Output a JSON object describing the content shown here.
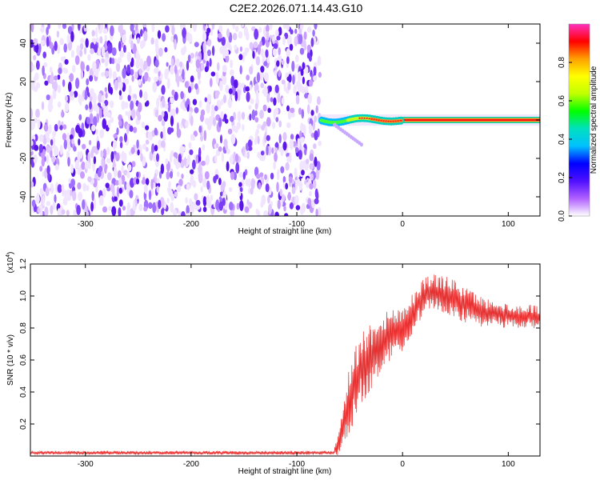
{
  "title": "C2E2.2026.071.14.43.G10",
  "chart_data": [
    {
      "type": "heatmap",
      "xlabel": "Height of straight line (km)",
      "ylabel": "Frequency (Hz)",
      "xlim": [
        -352,
        130
      ],
      "ylim": [
        -50,
        50
      ],
      "xticks": [
        -300,
        -200,
        -100,
        0,
        100
      ],
      "yticks": [
        -40,
        -20,
        0,
        20,
        40
      ],
      "noise_region_x": [
        -352,
        -78
      ],
      "signal_band_x": [
        -78,
        130
      ],
      "signal_frequency": 0,
      "colorbar": {
        "label": "Normalized spectral amplitude",
        "range": [
          0,
          1
        ],
        "ticks": [
          0.0,
          0.2,
          0.4,
          0.6,
          0.8
        ],
        "colors": [
          "#ffffff",
          "#b060ff",
          "#5010ff",
          "#0000ff",
          "#00c0ff",
          "#00e0c0",
          "#00ff00",
          "#c0ff00",
          "#ffff00",
          "#ffa000",
          "#ff0000",
          "#ff30c0"
        ]
      }
    },
    {
      "type": "line",
      "xlabel": "Height of straight line (km)",
      "ylabel": "SNR (10 * v/v)",
      "yscale_label": "(x10",
      "yscale_exp": "4",
      "yscale_close": ")",
      "xlim": [
        -352,
        130
      ],
      "ylim": [
        0,
        1.2
      ],
      "xticks": [
        -300,
        -200,
        -100,
        0,
        100
      ],
      "yticks": [
        0.2,
        0.4,
        0.6,
        0.8,
        1.0,
        1.2
      ],
      "ytick_labels": [
        "0.2",
        "0.4",
        "0.6",
        "0.8",
        "1.0",
        "1.2"
      ],
      "color": "#e83030",
      "series": [
        {
          "name": "SNR",
          "x": [
            -352,
            -300,
            -200,
            -100,
            -65,
            -62,
            -58,
            -55,
            -50,
            -45,
            -40,
            -35,
            -30,
            -25,
            -20,
            -15,
            -10,
            -5,
            0,
            5,
            10,
            15,
            20,
            25,
            30,
            35,
            40,
            45,
            50,
            55,
            60,
            65,
            70,
            75,
            80,
            85,
            90,
            95,
            100,
            105,
            110,
            115,
            120,
            125,
            130
          ],
          "y": [
            0.02,
            0.02,
            0.02,
            0.02,
            0.02,
            0.05,
            0.15,
            0.25,
            0.35,
            0.45,
            0.55,
            0.58,
            0.62,
            0.68,
            0.72,
            0.74,
            0.76,
            0.78,
            0.8,
            0.85,
            0.9,
            0.95,
            1.0,
            1.02,
            1.02,
            1.02,
            1.0,
            1.0,
            0.98,
            0.96,
            0.95,
            0.94,
            0.92,
            0.9,
            0.9,
            0.89,
            0.9,
            0.88,
            0.88,
            0.88,
            0.87,
            0.87,
            0.88,
            0.87,
            0.87
          ],
          "noise_amplitude": [
            0.01,
            0.01,
            0.01,
            0.01,
            0.01,
            0.06,
            0.1,
            0.15,
            0.18,
            0.2,
            0.18,
            0.2,
            0.18,
            0.18,
            0.16,
            0.15,
            0.14,
            0.12,
            0.12,
            0.12,
            0.1,
            0.1,
            0.1,
            0.1,
            0.1,
            0.1,
            0.1,
            0.1,
            0.1,
            0.1,
            0.1,
            0.08,
            0.08,
            0.08,
            0.07,
            0.07,
            0.07,
            0.07,
            0.06,
            0.06,
            0.06,
            0.06,
            0.06,
            0.06,
            0.06
          ]
        }
      ]
    }
  ]
}
